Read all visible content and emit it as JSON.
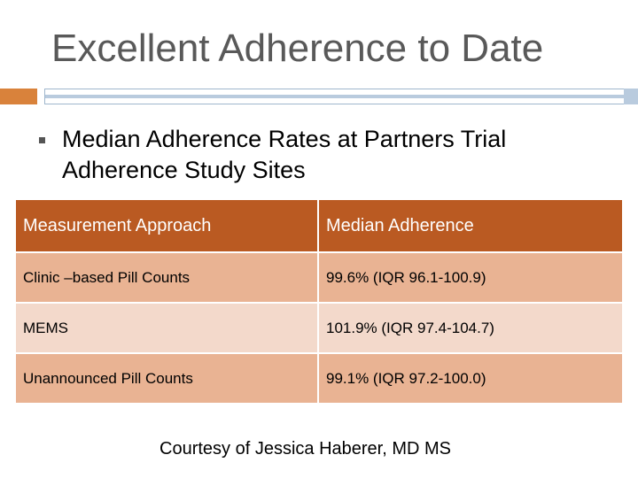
{
  "slide": {
    "title": "Excellent Adherence to Date",
    "bullet": "Median Adherence Rates at Partners Trial Adherence Study Sites",
    "courtesy": "Courtesy of Jessica Haberer, MD MS"
  },
  "table": {
    "headers": [
      "Measurement Approach",
      "Median Adherence"
    ],
    "rows": [
      [
        "Clinic –based Pill Counts",
        "99.6% (IQR 96.1-100.9)"
      ],
      [
        "MEMS",
        "101.9% (IQR 97.4-104.7)"
      ],
      [
        "Unannounced Pill Counts",
        "99.1% (IQR 97.2-100.0)"
      ]
    ]
  },
  "colors": {
    "title": "#595959",
    "accent_orange": "#d9823b",
    "accent_blue": "#b9cbde",
    "header_bg": "#ba5a22",
    "row_dark_bg": "#e9b393",
    "row_light_bg": "#f3d9cb"
  }
}
